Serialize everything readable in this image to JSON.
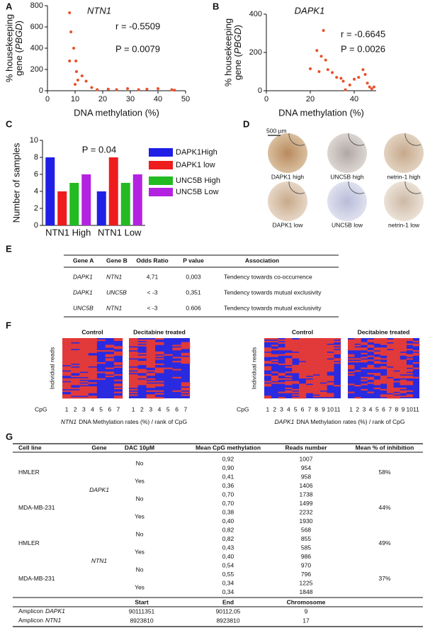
{
  "panel_labels": [
    "A",
    "B",
    "C",
    "D",
    "E",
    "F",
    "G"
  ],
  "chart_data": [
    {
      "type": "scatter",
      "title": "NTN1",
      "xlabel": "DNA methylation (%)",
      "ylabel": [
        "% housekeeping",
        "gene (",
        "PBGD",
        ")"
      ],
      "annotations": [
        "r = -0.5509",
        "P = 0.0079"
      ],
      "color": "#e8502a",
      "x": [
        8,
        8.5,
        9.5,
        8,
        10.3,
        10.5,
        11,
        10,
        12.5,
        14,
        16,
        18,
        22,
        25,
        29,
        33,
        36,
        40,
        45,
        46
      ],
      "values": [
        733,
        553,
        400,
        280,
        280,
        180,
        100,
        60,
        140,
        90,
        30,
        10,
        15,
        10,
        20,
        10,
        15,
        20,
        10,
        5
      ],
      "xlim": [
        0,
        50
      ],
      "xticks": [
        0,
        10,
        20,
        30,
        40,
        50
      ],
      "ylim": [
        0,
        800
      ],
      "yticks": [
        0,
        200,
        400,
        600,
        800
      ]
    },
    {
      "type": "scatter",
      "title": "DAPK1",
      "xlabel": "DNA methylation (%)",
      "ylabel": [
        "% housekeeping",
        "gene (",
        "PBGD",
        ")"
      ],
      "annotations": [
        "r = -0.6645",
        "P = 0.0026"
      ],
      "color": "#e8502a",
      "x": [
        20,
        23,
        24,
        25,
        26,
        27,
        28,
        30,
        32,
        34,
        35,
        36,
        38,
        40,
        42,
        44,
        45,
        46,
        47,
        48,
        49
      ],
      "values": [
        115,
        210,
        100,
        180,
        315,
        160,
        110,
        95,
        70,
        65,
        50,
        5,
        30,
        60,
        70,
        110,
        85,
        40,
        20,
        10,
        20
      ],
      "xlim": [
        0,
        50
      ],
      "xticks": [
        0,
        20,
        40
      ],
      "ylim": [
        0,
        400
      ],
      "yticks": [
        0,
        200,
        400
      ]
    },
    {
      "type": "bar",
      "ylabel": "Number of samples",
      "annotations": [
        "P = 0.04"
      ],
      "categories": [
        "NTN1 High",
        "NTN1 Low"
      ],
      "series": [
        {
          "name": "DAPK1High",
          "color": "#1f1fe6",
          "values": [
            8,
            4
          ]
        },
        {
          "name": "DAPK1 low",
          "color": "#ee1c1c",
          "values": [
            4,
            8
          ]
        },
        {
          "name": "UNC5B High",
          "color": "#22bb22",
          "values": [
            5,
            5
          ]
        },
        {
          "name": "UNC5B Low",
          "color": "#b322e0",
          "values": [
            6,
            6
          ]
        }
      ],
      "ylim": [
        0,
        10
      ],
      "yticks": [
        0,
        2,
        4,
        6,
        8,
        10
      ]
    }
  ],
  "tissue_images": {
    "scale_bar": "500 µm",
    "cores": [
      "DAPK1 high",
      "UNC5B high",
      "netrin-1 high",
      "DAPK1 low",
      "UNC5B low",
      "netrin-1 low"
    ]
  },
  "table_e": {
    "columns": [
      "Gene A",
      "Gene B",
      "Odds Ratio",
      "P value",
      "Association"
    ],
    "rows": [
      [
        "DAPK1",
        "NTN1",
        "4,71",
        "0,003",
        "Tendency towards co-occurrence"
      ],
      [
        "DAPK1",
        "UNC5B",
        "< -3",
        "0,351",
        "Tendency towards mutual exclusivity"
      ],
      [
        "UNC5B",
        "NTN1",
        "< -3",
        "0.606",
        "Tendency towards mutual exclusivity"
      ]
    ]
  },
  "heatmaps": [
    {
      "gene": "NTN1",
      "caption": "DNA Methylation rates (%) / rank of CpG",
      "conditions": [
        "Control",
        "Decitabine treated"
      ],
      "ylabel": "Individual reads",
      "xlabel": "CpG",
      "cpg": [
        1,
        2,
        3,
        4,
        5,
        6,
        7
      ]
    },
    {
      "gene": "DAPK1",
      "caption": "DNA Methylation rates (%) / rank of CpG",
      "conditions": [
        "Control",
        "Decitabine treated"
      ],
      "ylabel": "Individual reads",
      "xlabel": "CpG",
      "cpg": [
        1,
        2,
        3,
        4,
        5,
        6,
        7,
        8,
        9,
        10,
        11
      ]
    }
  ],
  "table_g": {
    "columns": [
      "Cell line",
      "Gene",
      "DAC 10µM",
      "Mean CpG methylation",
      "Reads number",
      "Mean % of inhibition"
    ],
    "genes": [
      {
        "name": "DAPK1",
        "groups": [
          {
            "cell_line": "HMLER",
            "inhibition": "58%",
            "treatments": [
              {
                "dac": "No",
                "rows": [
                  [
                    "0,92",
                    1007
                  ],
                  [
                    "0,90",
                    954
                  ]
                ]
              },
              {
                "dac": "Yes",
                "rows": [
                  [
                    "0,41",
                    958
                  ],
                  [
                    "0,36",
                    1406
                  ]
                ]
              }
            ]
          },
          {
            "cell_line": "MDA-MB-231",
            "inhibition": "44%",
            "treatments": [
              {
                "dac": "No",
                "rows": [
                  [
                    "0,70",
                    1738
                  ],
                  [
                    "0,70",
                    1499
                  ]
                ]
              },
              {
                "dac": "Yes",
                "rows": [
                  [
                    "0,38",
                    2232
                  ],
                  [
                    "0,40",
                    1930
                  ]
                ]
              }
            ]
          }
        ]
      },
      {
        "name": "NTN1",
        "groups": [
          {
            "cell_line": "HMLER",
            "inhibition": "49%",
            "treatments": [
              {
                "dac": "No",
                "rows": [
                  [
                    "0,82",
                    568
                  ],
                  [
                    "0,82",
                    855
                  ]
                ]
              },
              {
                "dac": "Yes",
                "rows": [
                  [
                    "0,43",
                    585
                  ],
                  [
                    "0,40",
                    986
                  ]
                ]
              }
            ]
          },
          {
            "cell_line": "MDA-MB-231",
            "inhibition": "37%",
            "treatments": [
              {
                "dac": "No",
                "rows": [
                  [
                    "0,54",
                    970
                  ],
                  [
                    "0,55",
                    796
                  ]
                ]
              },
              {
                "dac": "Yes",
                "rows": [
                  [
                    "0,34",
                    1225
                  ],
                  [
                    "0,34",
                    1848
                  ]
                ]
              }
            ]
          }
        ]
      }
    ],
    "amplicons": {
      "columns": [
        "Start",
        "End",
        "Chromosome"
      ],
      "rows": [
        {
          "prefix": "Amplicon",
          "gene": "DAPK1",
          "start": 90111351,
          "end": "90112,05",
          "chromosome": 9
        },
        {
          "prefix": "Amplicon",
          "gene": "NTN1",
          "start": 8923810,
          "end": 8923810,
          "chromosome": 17
        }
      ]
    }
  }
}
